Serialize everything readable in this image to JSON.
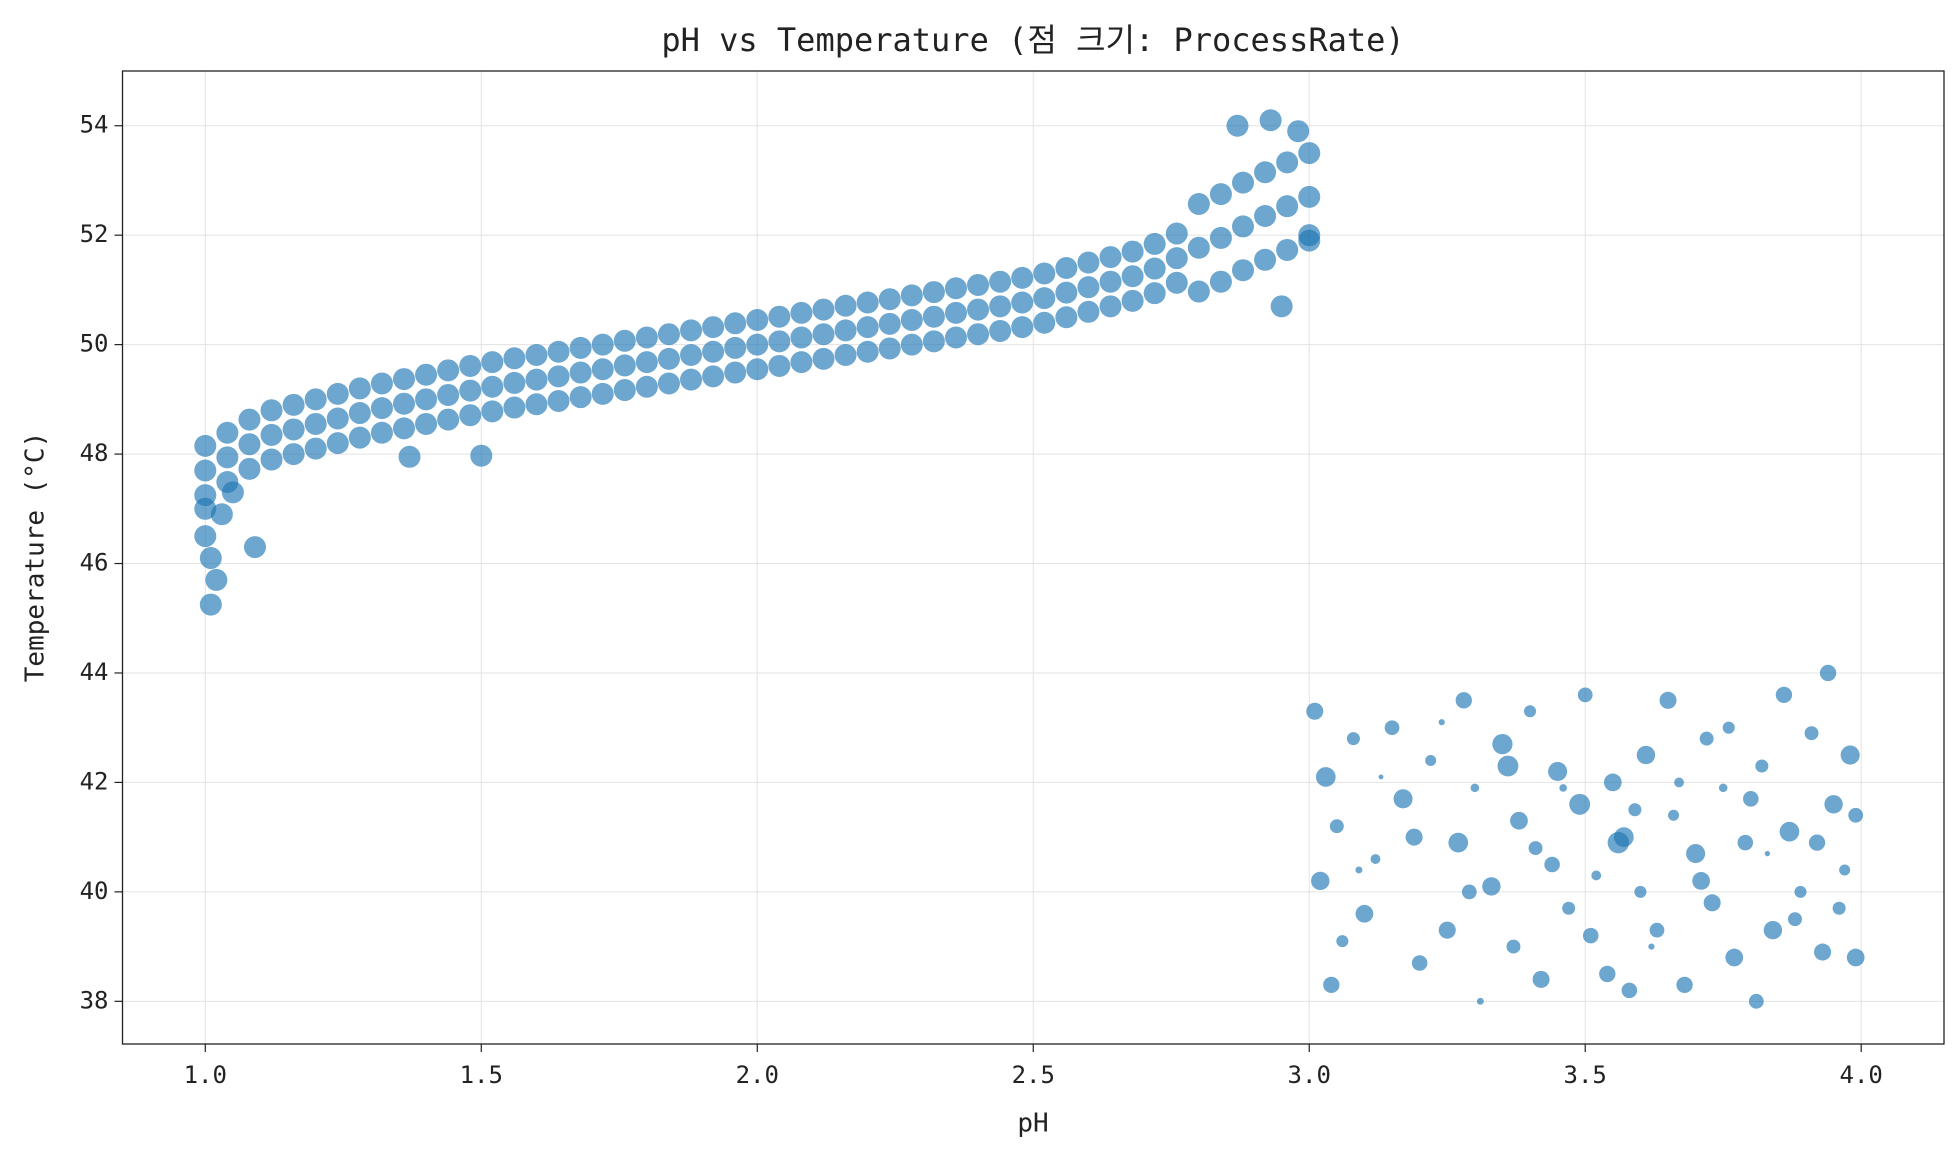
{
  "chart_data": {
    "type": "scatter",
    "title": "pH vs Temperature (점 크기: ProcessRate)",
    "x_label": "pH",
    "y_label": "Temperature (°C)",
    "xlim": [
      0.85,
      4.15
    ],
    "ylim": [
      37.22,
      55.0
    ],
    "xticks": [
      {
        "value": 1,
        "label": "1.0"
      },
      {
        "value": 1.5,
        "label": "1.5"
      },
      {
        "value": 2,
        "label": "2.0"
      },
      {
        "value": 2.5,
        "label": "2.5"
      },
      {
        "value": 3,
        "label": "3.0"
      },
      {
        "value": 3.5,
        "label": "3.5"
      },
      {
        "value": 4,
        "label": "4.0"
      }
    ],
    "yticks": [
      38,
      40,
      42,
      44,
      46,
      48,
      50,
      52,
      54
    ],
    "grid": true,
    "series": [
      {
        "color": "#1f77b4",
        "x": [
          1.0,
          1.04,
          1.08,
          1.12,
          1.16,
          1.2,
          1.24,
          1.28,
          1.32,
          1.36,
          1.4,
          1.44,
          1.48,
          1.52,
          1.56,
          1.6,
          1.64,
          1.68,
          1.72,
          1.76,
          1.8,
          1.84,
          1.88,
          1.92,
          1.96,
          2.0,
          2.04,
          2.08,
          2.12,
          2.16,
          2.2,
          2.24,
          2.28,
          2.32,
          2.36,
          2.4,
          2.44,
          2.48,
          2.52,
          2.56,
          2.6,
          2.64,
          2.68,
          2.72,
          2.76,
          2.8,
          2.84,
          2.88,
          2.92,
          2.96,
          3.0,
          1.0,
          1.04,
          1.08,
          1.12,
          1.16,
          1.2,
          1.24,
          1.28,
          1.32,
          1.36,
          1.4,
          1.44,
          1.48,
          1.52,
          1.56,
          1.6,
          1.64,
          1.68,
          1.72,
          1.76,
          1.8,
          1.84,
          1.88,
          1.92,
          1.96,
          2.0,
          2.04,
          2.08,
          2.12,
          2.16,
          2.2,
          2.24,
          2.28,
          2.32,
          2.36,
          2.4,
          2.44,
          2.48,
          2.52,
          2.56,
          2.6,
          2.64,
          2.68,
          2.72,
          2.76,
          2.8,
          2.84,
          2.88,
          2.92,
          2.96,
          3.0,
          1.0,
          1.04,
          1.08,
          1.12,
          1.16,
          1.2,
          1.24,
          1.28,
          1.32,
          1.36,
          1.4,
          1.44,
          1.48,
          1.52,
          1.56,
          1.6,
          1.64,
          1.68,
          1.72,
          1.76,
          1.8,
          1.84,
          1.88,
          1.92,
          1.96,
          2.0,
          2.04,
          2.08,
          2.12,
          2.16,
          2.2,
          2.24,
          2.28,
          2.32,
          2.36,
          2.4,
          2.44,
          2.48,
          2.52,
          2.56,
          2.6,
          2.64,
          2.68,
          2.72,
          2.76,
          2.8,
          2.84,
          2.88,
          2.92,
          2.96,
          3.0,
          1.0,
          1.01,
          1.01,
          1.02,
          1.09,
          1.0,
          1.5,
          1.37,
          2.87,
          2.93,
          2.98,
          3.0,
          2.95,
          1.03,
          1.05
        ],
        "values": [
          47.25,
          47.49,
          47.73,
          47.9,
          48.0,
          48.1,
          48.2,
          48.3,
          48.39,
          48.47,
          48.55,
          48.63,
          48.71,
          48.78,
          48.85,
          48.91,
          48.97,
          49.04,
          49.1,
          49.17,
          49.23,
          49.29,
          49.36,
          49.42,
          49.49,
          49.55,
          49.61,
          49.68,
          49.74,
          49.81,
          49.87,
          49.93,
          50.0,
          50.06,
          50.13,
          50.19,
          50.25,
          50.32,
          50.4,
          50.5,
          50.6,
          50.7,
          50.8,
          50.94,
          51.13,
          50.97,
          51.15,
          51.36,
          51.55,
          51.73,
          51.9,
          47.7,
          47.94,
          48.18,
          48.35,
          48.45,
          48.55,
          48.65,
          48.75,
          48.84,
          48.92,
          49.0,
          49.08,
          49.16,
          49.23,
          49.3,
          49.36,
          49.42,
          49.49,
          49.55,
          49.62,
          49.68,
          49.74,
          49.81,
          49.87,
          49.94,
          50.0,
          50.06,
          50.13,
          50.19,
          50.26,
          50.32,
          50.38,
          50.45,
          50.51,
          50.58,
          50.64,
          50.7,
          50.77,
          50.85,
          50.95,
          51.05,
          51.15,
          51.25,
          51.39,
          51.58,
          51.77,
          51.95,
          52.16,
          52.35,
          52.53,
          52.7,
          48.15,
          48.39,
          48.63,
          48.8,
          48.9,
          49.0,
          49.1,
          49.2,
          49.29,
          49.37,
          49.45,
          49.53,
          49.61,
          49.68,
          49.75,
          49.81,
          49.87,
          49.94,
          50.0,
          50.07,
          50.13,
          50.19,
          50.26,
          50.32,
          50.39,
          50.45,
          50.51,
          50.58,
          50.64,
          50.71,
          50.77,
          50.83,
          50.9,
          50.96,
          51.03,
          51.09,
          51.15,
          51.22,
          51.3,
          51.4,
          51.5,
          51.6,
          51.7,
          51.84,
          52.03,
          52.57,
          52.75,
          52.96,
          53.15,
          53.33,
          53.5,
          46.5,
          46.1,
          45.25,
          45.7,
          46.3,
          47.0,
          47.97,
          47.95,
          54.0,
          54.1,
          53.9,
          52.0,
          50.7,
          46.9,
          47.3
        ],
        "sizes": [
          100,
          100,
          100,
          100,
          100,
          100,
          100,
          100,
          100,
          100,
          100,
          100,
          100,
          100,
          100,
          100,
          100,
          100,
          100,
          100,
          100,
          100,
          100,
          100,
          100,
          100,
          100,
          100,
          100,
          100,
          100,
          100,
          100,
          100,
          100,
          100,
          100,
          100,
          100,
          100,
          100,
          100,
          100,
          100,
          100,
          100,
          100,
          100,
          100,
          100,
          100,
          100,
          100,
          100,
          100,
          100,
          100,
          100,
          100,
          100,
          100,
          100,
          100,
          100,
          100,
          100,
          100,
          100,
          100,
          100,
          100,
          100,
          100,
          100,
          100,
          100,
          100,
          100,
          100,
          100,
          100,
          100,
          100,
          100,
          100,
          100,
          100,
          100,
          100,
          100,
          100,
          100,
          100,
          100,
          100,
          100,
          100,
          100,
          100,
          100,
          100,
          100,
          100,
          100,
          100,
          100,
          100,
          100,
          100,
          100,
          100,
          100,
          100,
          100,
          100,
          100,
          100,
          100,
          100,
          100,
          100,
          100,
          100,
          100,
          100,
          100,
          100,
          100,
          100,
          100,
          100,
          100,
          100,
          100,
          100,
          100,
          100,
          100,
          100,
          100,
          100,
          100,
          100,
          100,
          100,
          100,
          100,
          100,
          100,
          100,
          100,
          100,
          100,
          100,
          100,
          100,
          100,
          100,
          100,
          100,
          100,
          100,
          100,
          100,
          100,
          100,
          100,
          100
        ]
      },
      {
        "color": "#1f77b4",
        "x": [
          3.01,
          3.03,
          3.05,
          3.02,
          3.04,
          3.08,
          3.1,
          3.12,
          3.15,
          3.17,
          3.2,
          3.22,
          3.25,
          3.27,
          3.28,
          3.3,
          3.31,
          3.33,
          3.35,
          3.37,
          3.38,
          3.4,
          3.42,
          3.44,
          3.45,
          3.47,
          3.49,
          3.5,
          3.52,
          3.54,
          3.55,
          3.57,
          3.58,
          3.6,
          3.61,
          3.63,
          3.65,
          3.66,
          3.68,
          3.7,
          3.72,
          3.73,
          3.75,
          3.77,
          3.79,
          3.81,
          3.82,
          3.84,
          3.86,
          3.87,
          3.89,
          3.91,
          3.93,
          3.94,
          3.95,
          3.97,
          3.98,
          3.99,
          3.99,
          3.06,
          3.09,
          3.13,
          3.19,
          3.24,
          3.29,
          3.36,
          3.41,
          3.46,
          3.51,
          3.56,
          3.59,
          3.62,
          3.67,
          3.71,
          3.76,
          3.8,
          3.83,
          3.88,
          3.92,
          3.96
        ],
        "values": [
          43.3,
          42.1,
          41.2,
          40.2,
          38.3,
          42.8,
          39.6,
          40.6,
          43.0,
          41.7,
          38.7,
          42.4,
          39.3,
          40.9,
          43.5,
          41.9,
          38.0,
          40.1,
          42.7,
          39.0,
          41.3,
          43.3,
          38.4,
          40.5,
          42.2,
          39.7,
          41.6,
          43.6,
          40.3,
          38.5,
          42.0,
          41.0,
          38.2,
          40.0,
          42.5,
          39.3,
          43.5,
          41.4,
          38.3,
          40.7,
          42.8,
          39.8,
          41.9,
          38.8,
          40.9,
          38.0,
          42.3,
          39.3,
          43.6,
          41.1,
          40.0,
          42.9,
          38.9,
          44.0,
          41.6,
          40.4,
          42.5,
          38.8,
          41.4,
          39.1,
          40.4,
          42.1,
          41.0,
          43.1,
          40.0,
          42.3,
          40.8,
          41.9,
          39.2,
          40.9,
          41.5,
          39.0,
          42.0,
          40.2,
          43.0,
          41.7,
          40.7,
          39.5,
          40.9,
          39.7
        ],
        "sizes": [
          60,
          80,
          40,
          70,
          55,
          35,
          65,
          20,
          45,
          75,
          50,
          25,
          60,
          80,
          55,
          15,
          10,
          70,
          85,
          40,
          65,
          30,
          60,
          50,
          75,
          35,
          90,
          45,
          20,
          55,
          65,
          80,
          50,
          30,
          70,
          45,
          60,
          25,
          55,
          75,
          40,
          60,
          15,
          65,
          50,
          45,
          35,
          70,
          55,
          80,
          30,
          40,
          60,
          55,
          70,
          25,
          75,
          65,
          45,
          30,
          10,
          5,
          60,
          8,
          45,
          90,
          40,
          12,
          50,
          95,
          35,
          8,
          20,
          65,
          30,
          50,
          6,
          40,
          55,
          35
        ]
      }
    ]
  }
}
